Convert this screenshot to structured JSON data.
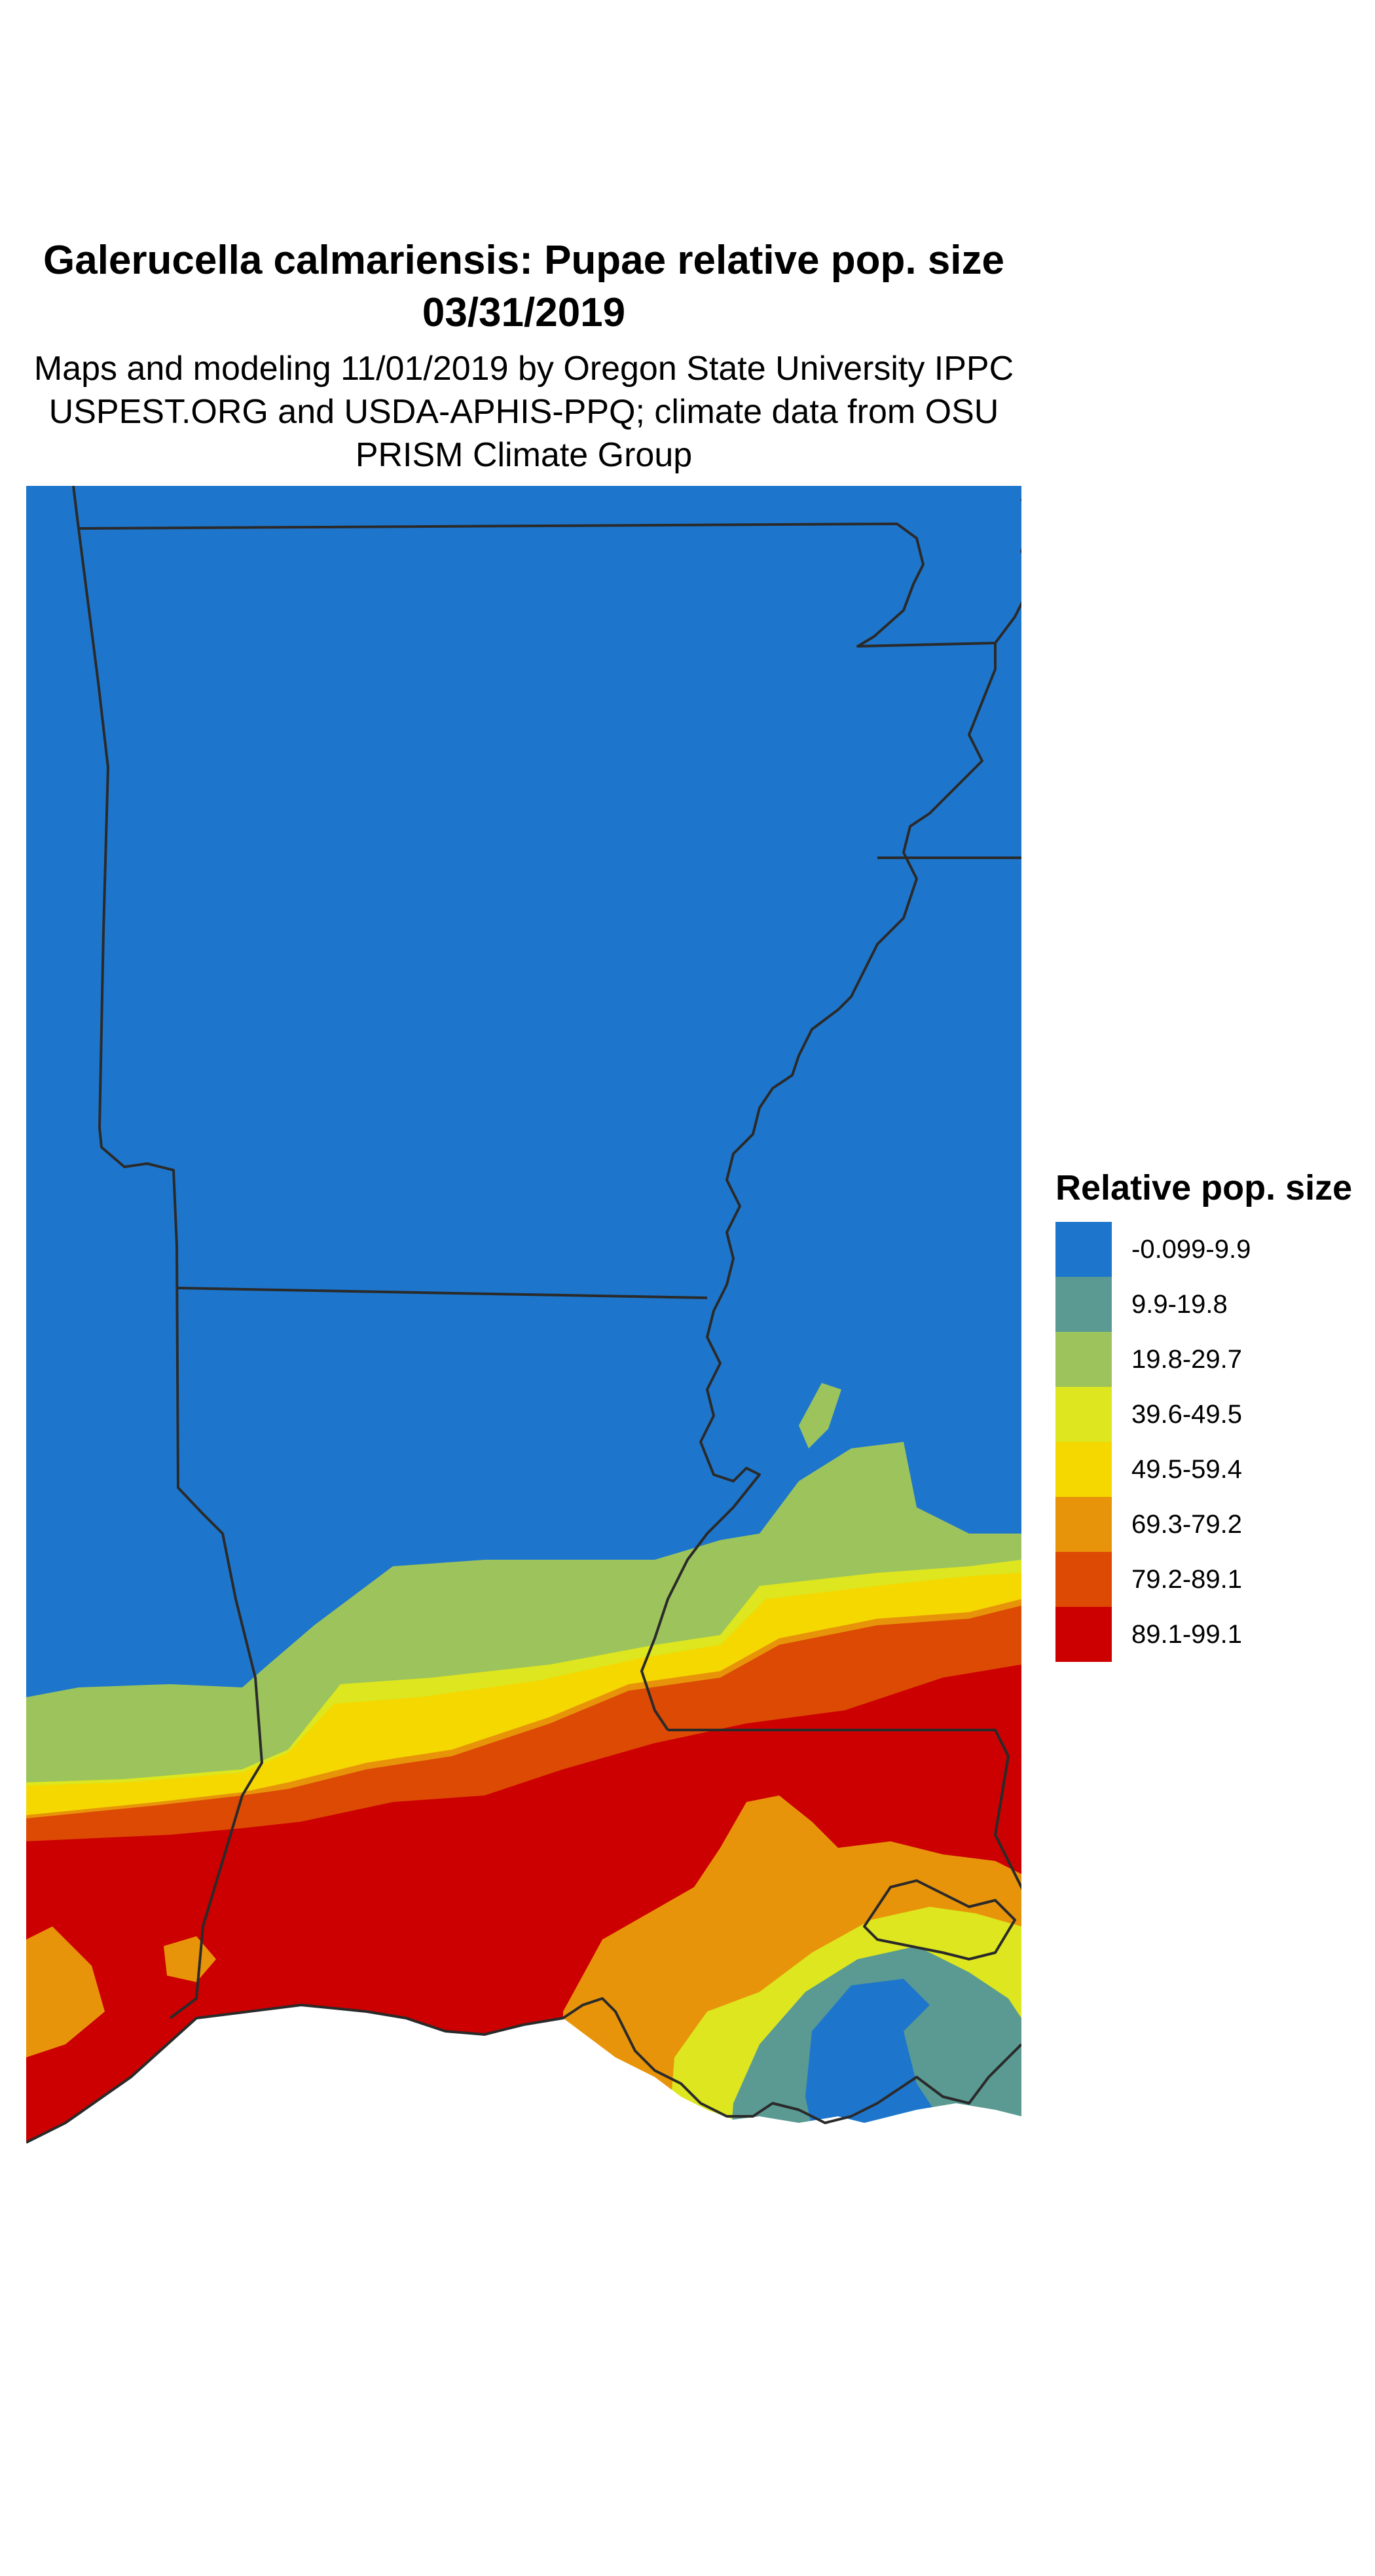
{
  "title": "Galerucella calmariensis: Pupae relative pop. size 03/31/2019",
  "subtitle": "Maps and modeling 11/01/2019 by Oregon State University IPPC USPEST.ORG and USDA-APHIS-PPQ; climate data from OSU PRISM Climate Group",
  "legend": {
    "title": "Relative pop. size",
    "items": [
      {
        "label": "-0.099-9.9",
        "color": "#1e76cc"
      },
      {
        "label": "9.9-19.8",
        "color": "#5a9a92"
      },
      {
        "label": "19.8-29.7",
        "color": "#9dc45c"
      },
      {
        "label": "39.6-49.5",
        "color": "#dde61e"
      },
      {
        "label": "49.5-59.4",
        "color": "#f5d800"
      },
      {
        "label": "69.3-79.2",
        "color": "#e8940a"
      },
      {
        "label": "79.2-89.1",
        "color": "#dc4a04"
      },
      {
        "label": "89.1-99.1",
        "color": "#cc0000"
      }
    ]
  }
}
